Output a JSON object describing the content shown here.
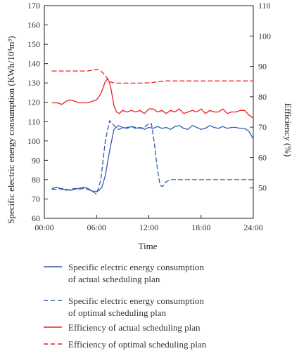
{
  "chart_data": {
    "type": "line",
    "xlabel": "Time",
    "ylabel_left": "Specific electric energy consumption (KWh/10³m³)",
    "ylabel_right": "Efficiency (%)",
    "x_ticks": [
      "00:00",
      "06:00",
      "12:00",
      "18:00",
      "24:00"
    ],
    "x_range": [
      0,
      24
    ],
    "y_left_range": [
      60,
      170
    ],
    "y_right_range": [
      40,
      110
    ],
    "y_left_ticks": [
      60,
      70,
      80,
      90,
      100,
      110,
      120,
      130,
      140,
      150,
      160,
      170
    ],
    "y_right_ticks": [
      50,
      60,
      70,
      80,
      90,
      100,
      110
    ],
    "colors": {
      "blue": "#3558b0",
      "red": "#e8202a"
    },
    "series": [
      {
        "name": "Specific electric energy consumption of actual scheduling plan",
        "legend_lines": [
          "Specific electric energy consumption",
          "of actual scheduling plan"
        ],
        "axis": "left",
        "color": "blue",
        "dash": "solid",
        "x": [
          0.9,
          1.5,
          2.0,
          2.5,
          3.0,
          3.5,
          4.0,
          4.5,
          5.0,
          5.5,
          6.0,
          6.3,
          6.6,
          7.0,
          7.5,
          8.0,
          8.5,
          9.0,
          9.5,
          10.0,
          10.5,
          11.0,
          11.5,
          12.0,
          12.5,
          13.0,
          13.5,
          14.0,
          14.5,
          15.0,
          15.5,
          16.0,
          16.5,
          17.0,
          17.5,
          18.0,
          18.5,
          19.0,
          19.5,
          20.0,
          20.5,
          21.0,
          21.5,
          22.0,
          22.5,
          23.0,
          23.5,
          24.0
        ],
        "y": [
          75.5,
          76,
          75,
          75,
          74.5,
          75,
          75.5,
          76,
          75.5,
          74,
          74,
          74.5,
          76,
          82,
          95,
          106,
          108,
          107,
          106.5,
          107.5,
          106.5,
          107,
          106,
          107,
          106.5,
          107.5,
          106.5,
          107,
          106,
          107.5,
          108,
          106.5,
          106,
          108,
          107,
          106,
          106.5,
          108,
          107,
          106.5,
          107.5,
          106.5,
          107,
          107,
          106.5,
          106.5,
          105,
          101
        ]
      },
      {
        "name": "Specific electric energy consumption of optimal scheduling plan",
        "legend_lines": [
          "Specific electric energy consumption",
          "of optimal scheduling plan"
        ],
        "axis": "left",
        "color": "blue",
        "dash": "dashed",
        "x": [
          0.9,
          1.5,
          2.0,
          2.5,
          3.0,
          3.5,
          4.0,
          4.5,
          5.0,
          5.5,
          6.0,
          6.5,
          7.0,
          7.5,
          8.0,
          8.5,
          9.0,
          9.5,
          10.0,
          10.5,
          11.0,
          11.5,
          12.0,
          12.3,
          12.6,
          13.0,
          13.3,
          13.6,
          14.0,
          14.5,
          15.0,
          16.0,
          17.0,
          18.0,
          19.0,
          20.0,
          21.0,
          22.0,
          23.0,
          24.0
        ],
        "y": [
          75,
          75,
          75.5,
          74.5,
          75,
          75.5,
          75,
          75.5,
          75,
          74,
          72.5,
          80,
          100,
          110.5,
          108,
          106,
          106.5,
          107,
          107.5,
          107,
          106.5,
          107,
          109,
          109,
          100,
          85,
          77,
          76.5,
          79,
          80,
          80,
          80,
          80,
          80,
          80,
          80,
          80,
          80,
          80,
          80
        ]
      },
      {
        "name": "Efficiency of actual scheduling plan",
        "legend_lines": [
          "Efficiency of actual scheduling plan"
        ],
        "axis": "right",
        "color": "red",
        "dash": "solid",
        "x": [
          0.9,
          1.5,
          2.0,
          2.5,
          3.0,
          3.5,
          4.0,
          4.5,
          5.0,
          5.5,
          6.0,
          6.5,
          7.0,
          7.3,
          7.6,
          8.0,
          8.3,
          8.6,
          9.0,
          9.5,
          10.0,
          10.5,
          11.0,
          11.5,
          12.0,
          12.5,
          13.0,
          13.5,
          14.0,
          14.5,
          15.0,
          15.5,
          16.0,
          16.5,
          17.0,
          17.5,
          18.0,
          18.5,
          19.0,
          19.5,
          20.0,
          20.5,
          21.0,
          21.5,
          22.0,
          22.5,
          23.0,
          23.5,
          24.0
        ],
        "y": [
          78,
          78,
          77.5,
          78.5,
          79,
          78.5,
          78,
          78,
          78,
          78.5,
          79,
          81,
          85,
          86,
          83.5,
          77,
          75,
          74.5,
          75.5,
          75,
          75.5,
          75,
          75.5,
          74.5,
          76,
          76,
          75,
          75.5,
          74.5,
          75.5,
          75,
          76,
          74.5,
          75,
          75.5,
          75,
          76,
          74.5,
          75.5,
          75,
          75,
          76,
          74.5,
          75,
          75,
          75.5,
          75.5,
          74,
          73
        ]
      },
      {
        "name": "Efficiency of optimal scheduling plan",
        "legend_lines": [
          "Efficiency of optimal scheduling plan"
        ],
        "axis": "right",
        "color": "red",
        "dash": "dashed",
        "x": [
          0.9,
          2.0,
          3.0,
          4.0,
          5.0,
          5.5,
          6.0,
          6.5,
          7.0,
          7.5,
          8.0,
          9.0,
          10.0,
          11.0,
          12.0,
          12.5,
          13.0,
          14.0,
          15.0,
          16.0,
          17.0,
          18.0,
          19.0,
          20.0,
          21.0,
          22.0,
          23.0,
          24.0
        ],
        "y": [
          88.5,
          88.5,
          88.5,
          88.5,
          88.5,
          88.8,
          89,
          88.5,
          87,
          85,
          84.5,
          84.5,
          84.5,
          84.5,
          84.6,
          84.7,
          85,
          85.2,
          85.2,
          85.2,
          85.2,
          85.2,
          85.2,
          85.2,
          85.2,
          85.2,
          85.2,
          85.2
        ]
      }
    ]
  }
}
